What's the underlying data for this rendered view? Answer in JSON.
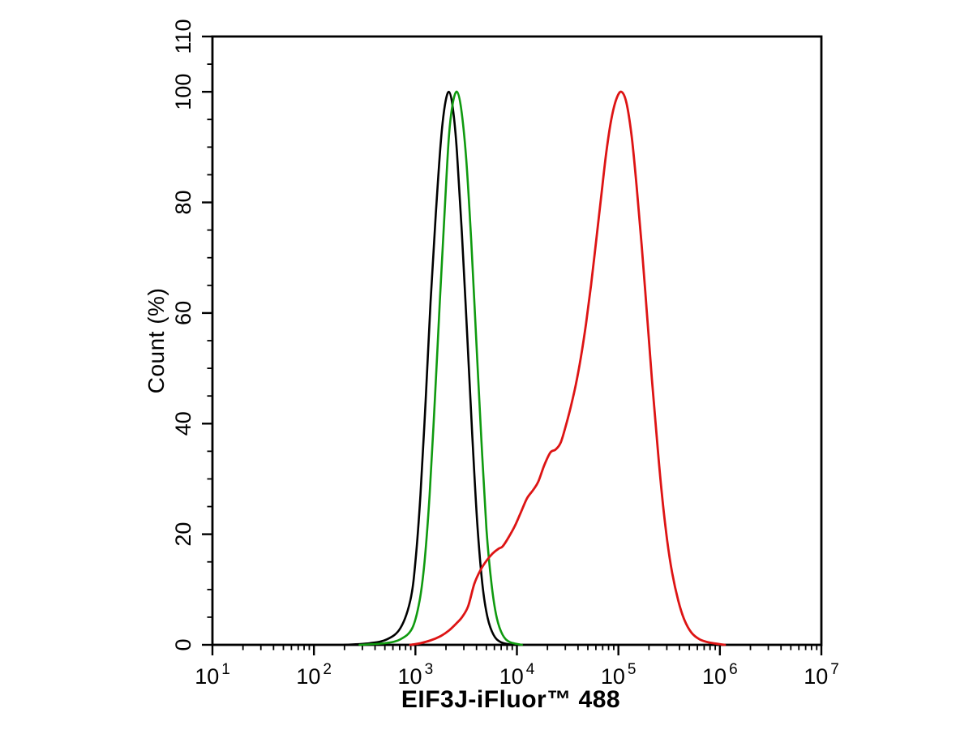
{
  "figure": {
    "background": "#ffffff"
  },
  "chart_data": {
    "type": "line",
    "subtype": "flow-cytometry-histogram-overlay",
    "title": "",
    "xlabel": "EIF3J-iFluor™ 488",
    "ylabel": "Count  (%)",
    "xscale": "log",
    "xlim": [
      10,
      10000000
    ],
    "ylim": [
      0,
      110
    ],
    "xticks": [
      10,
      100,
      1000,
      10000,
      100000,
      1000000,
      10000000
    ],
    "xtick_labels": [
      "10¹",
      "10²",
      "10³",
      "10⁴",
      "10⁵",
      "10⁶",
      "10⁷"
    ],
    "yticks": [
      0,
      20,
      40,
      60,
      80,
      100,
      110
    ],
    "y_minor_step": 5,
    "grid": false,
    "legend_position": "none",
    "axis_color": "#000000",
    "series": [
      {
        "name": "black-curve",
        "color": "#000000",
        "line_width": 2.6,
        "peak": {
          "x": 2140,
          "y": 100
        },
        "points": [
          [
            200,
            0
          ],
          [
            355,
            0.3
          ],
          [
            525,
            1
          ],
          [
            710,
            3
          ],
          [
            890,
            8
          ],
          [
            1000,
            15
          ],
          [
            1120,
            27
          ],
          [
            1260,
            44
          ],
          [
            1410,
            62
          ],
          [
            1590,
            78
          ],
          [
            1780,
            91
          ],
          [
            1950,
            97.5
          ],
          [
            2140,
            100
          ],
          [
            2340,
            97
          ],
          [
            2570,
            89
          ],
          [
            2880,
            74
          ],
          [
            3240,
            56
          ],
          [
            3630,
            38
          ],
          [
            4070,
            22
          ],
          [
            4570,
            11
          ],
          [
            5130,
            5
          ],
          [
            5890,
            1.8
          ],
          [
            6920,
            0.5
          ],
          [
            8910,
            0
          ]
        ]
      },
      {
        "name": "green-curve",
        "color": "#0f9a0f",
        "line_width": 2.6,
        "peak": {
          "x": 2570,
          "y": 100
        },
        "points": [
          [
            282,
            0
          ],
          [
            500,
            0.3
          ],
          [
            710,
            1
          ],
          [
            930,
            3
          ],
          [
            1100,
            8
          ],
          [
            1230,
            15
          ],
          [
            1380,
            27
          ],
          [
            1550,
            44
          ],
          [
            1740,
            62
          ],
          [
            1950,
            79
          ],
          [
            2140,
            92
          ],
          [
            2340,
            98
          ],
          [
            2570,
            100
          ],
          [
            2820,
            97
          ],
          [
            3160,
            88
          ],
          [
            3550,
            73
          ],
          [
            3980,
            55
          ],
          [
            4470,
            37
          ],
          [
            5010,
            21
          ],
          [
            5620,
            11
          ],
          [
            6310,
            5
          ],
          [
            7240,
            1.8
          ],
          [
            8510,
            0.5
          ],
          [
            11200,
            0
          ]
        ]
      },
      {
        "name": "red-curve",
        "color": "#dd1414",
        "line_width": 2.8,
        "peak": {
          "x": 107000,
          "y": 100
        },
        "points": [
          [
            890,
            0
          ],
          [
            1120,
            0.3
          ],
          [
            1410,
            0.8
          ],
          [
            1780,
            1.6
          ],
          [
            2140,
            2.6
          ],
          [
            2510,
            3.8
          ],
          [
            2880,
            5
          ],
          [
            3310,
            7
          ],
          [
            3800,
            11
          ],
          [
            4370,
            13.5
          ],
          [
            5010,
            15.2
          ],
          [
            5750,
            16.5
          ],
          [
            6610,
            17.4
          ],
          [
            7240,
            17.8
          ],
          [
            8320,
            19.5
          ],
          [
            9550,
            21.5
          ],
          [
            10970,
            24
          ],
          [
            12590,
            26.5
          ],
          [
            14450,
            28
          ],
          [
            16220,
            29.5
          ],
          [
            18620,
            32.5
          ],
          [
            21400,
            34.8
          ],
          [
            24000,
            35.3
          ],
          [
            26900,
            36.5
          ],
          [
            30200,
            39.5
          ],
          [
            33900,
            43
          ],
          [
            38000,
            47
          ],
          [
            42700,
            52
          ],
          [
            47900,
            58
          ],
          [
            53700,
            65
          ],
          [
            60300,
            73
          ],
          [
            67600,
            81
          ],
          [
            75900,
            89
          ],
          [
            85100,
            95
          ],
          [
            95500,
            98.7
          ],
          [
            107000,
            100
          ],
          [
            120000,
            98
          ],
          [
            135000,
            92
          ],
          [
            151000,
            83
          ],
          [
            170000,
            72
          ],
          [
            191000,
            60
          ],
          [
            214000,
            48
          ],
          [
            240000,
            37
          ],
          [
            269000,
            27
          ],
          [
            302000,
            19
          ],
          [
            339000,
            13
          ],
          [
            389000,
            8
          ],
          [
            447000,
            4.5
          ],
          [
            525000,
            2.2
          ],
          [
            631000,
            1
          ],
          [
            794000,
            0.4
          ],
          [
            1120000,
            0
          ]
        ]
      }
    ]
  }
}
